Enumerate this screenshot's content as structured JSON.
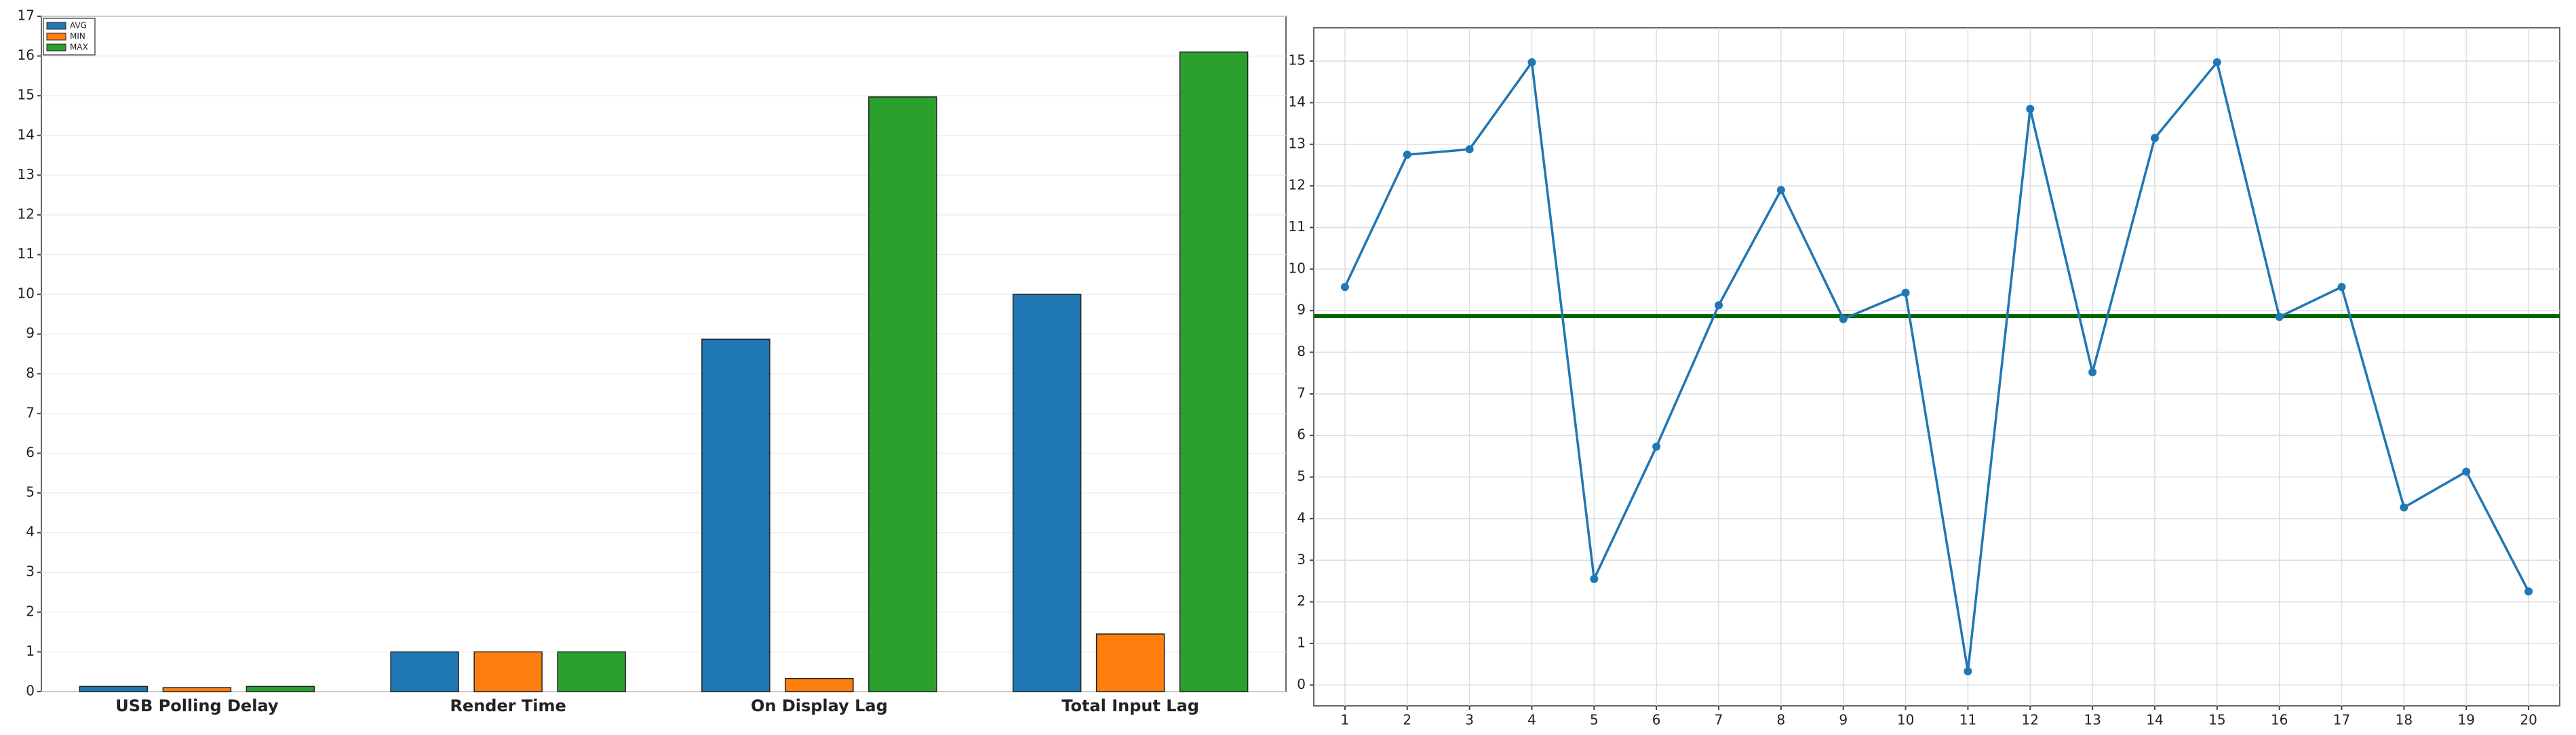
{
  "chart_data": [
    {
      "type": "bar",
      "categories": [
        "USB Polling Delay",
        "Render Time",
        "On Display Lag",
        "Total Input Lag"
      ],
      "series": [
        {
          "name": "AVG",
          "color": "#1f77b4",
          "values": [
            0.13,
            1.0,
            8.87,
            10.0
          ]
        },
        {
          "name": "MIN",
          "color": "#ff7f0e",
          "values": [
            0.1,
            1.0,
            0.33,
            1.45
          ]
        },
        {
          "name": "MAX",
          "color": "#2ca02c",
          "values": [
            0.13,
            1.0,
            14.97,
            16.1
          ]
        }
      ],
      "ylim": [
        0,
        17
      ],
      "yticks": [
        0,
        1,
        2,
        3,
        4,
        5,
        6,
        7,
        8,
        9,
        10,
        11,
        12,
        13,
        14,
        15,
        16,
        17
      ],
      "grid": true,
      "legend": "upper-left"
    },
    {
      "type": "line",
      "x": [
        1,
        2,
        3,
        4,
        5,
        6,
        7,
        8,
        9,
        10,
        11,
        12,
        13,
        14,
        15,
        16,
        17,
        18,
        19,
        20
      ],
      "series": [
        {
          "color": "#1f77b4",
          "values": [
            9.57,
            12.75,
            12.88,
            14.97,
            2.55,
            5.73,
            9.13,
            11.9,
            8.8,
            9.43,
            0.33,
            13.85,
            7.52,
            13.15,
            14.97,
            8.85,
            9.57,
            4.27,
            5.13,
            2.25
          ]
        }
      ],
      "reference_line": {
        "value": 8.87,
        "color": "#006400"
      },
      "xlim": [
        0.5,
        20.5
      ],
      "xticks": [
        1,
        2,
        3,
        4,
        5,
        6,
        7,
        8,
        9,
        10,
        11,
        12,
        13,
        14,
        15,
        16,
        17,
        18,
        19,
        20
      ],
      "ylim": [
        -0.5,
        15.8
      ],
      "yticks": [
        0,
        1,
        2,
        3,
        4,
        5,
        6,
        7,
        8,
        9,
        10,
        11,
        12,
        13,
        14,
        15
      ],
      "grid": true
    }
  ]
}
